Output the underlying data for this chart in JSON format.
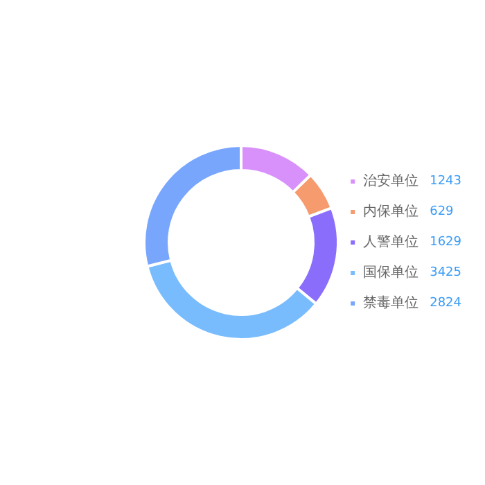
{
  "chart_data": {
    "type": "donut",
    "categories": [
      "治安单位",
      "内保单位",
      "人警单位",
      "国保单位",
      "禁毒单位"
    ],
    "values": [
      1243,
      629,
      1629,
      3425,
      2824
    ],
    "colors": [
      "#d891fb",
      "#f59b6d",
      "#8a6dfb",
      "#78bcfd",
      "#78a6fd"
    ],
    "legend": "right",
    "data_labels": true
  }
}
